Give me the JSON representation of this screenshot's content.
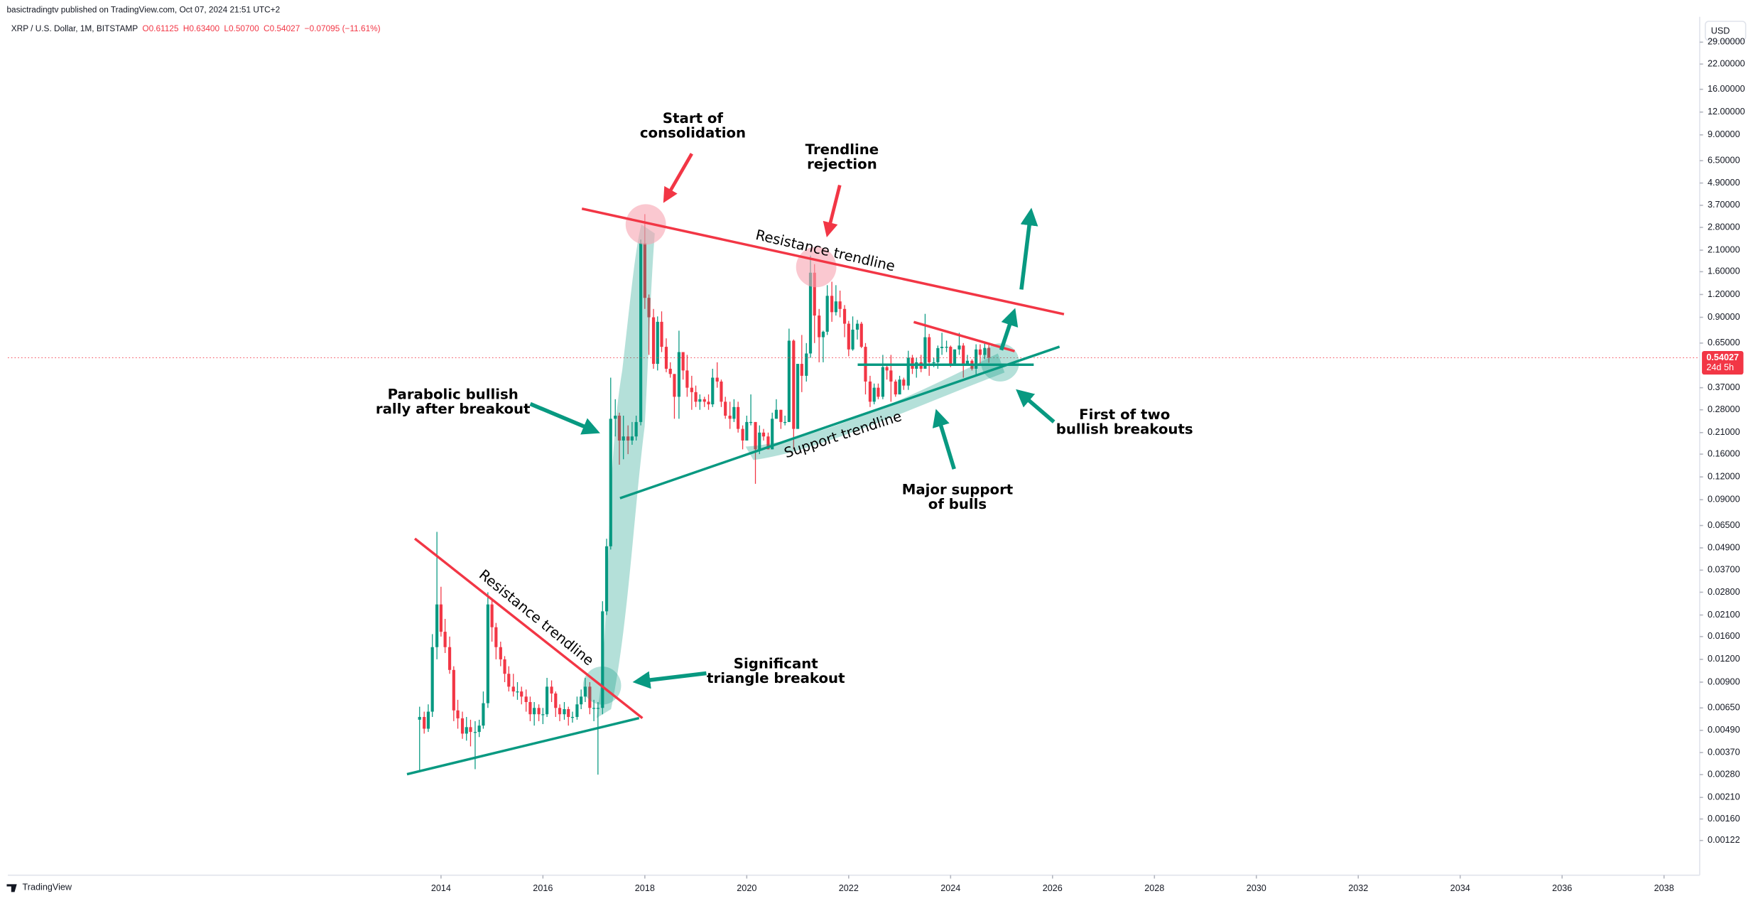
{
  "header": {
    "published": "basictradingtv published on TradingView.com, Oct 07, 2024 21:51 UTC+2",
    "symbol": "XRP / U.S. Dollar, 1M, BITSTAMP",
    "ohlc": [
      "O0.61125",
      "H0.63400",
      "L0.50700",
      "C0.54027",
      "−0.07095 (−11.61%)"
    ]
  },
  "currency": "USD",
  "price_label": "0.54027",
  "countdown": "24d 5h",
  "brand": "TradingView",
  "annotations": [
    [
      "Start of",
      "consolidation"
    ],
    [
      "Trendline",
      "rejection"
    ],
    [
      "Parabolic bullish",
      "rally after breakout"
    ],
    [
      "First of two",
      "bullish breakouts"
    ],
    [
      "Major support",
      "of bulls"
    ],
    [
      "Significant",
      "triangle breakout"
    ]
  ],
  "trendline_labels": [
    "Resistance trendline",
    "Support trendline",
    "Resistance trendline"
  ],
  "chart_data": {
    "type": "candlestick",
    "log_scale": true,
    "up_color": "#089981",
    "down_color": "#f23645",
    "xlim": [
      2005.5,
      2038.7
    ],
    "xticks": [
      2014,
      2016,
      2018,
      2020,
      2022,
      2024,
      2026,
      2028,
      2030,
      2032,
      2034,
      2036,
      2038
    ],
    "ylim": [
      0.000787,
      37.2
    ],
    "yticks": [
      {
        "value": 0.00122,
        "label": "0.00122"
      },
      {
        "value": 0.0016,
        "label": "0.00160"
      },
      {
        "value": 0.0021,
        "label": "0.00210"
      },
      {
        "value": 0.0028,
        "label": "0.00280"
      },
      {
        "value": 0.0037,
        "label": "0.00370"
      },
      {
        "value": 0.0049,
        "label": "0.00490"
      },
      {
        "value": 0.0065,
        "label": "0.00650"
      },
      {
        "value": 0.009,
        "label": "0.00900"
      },
      {
        "value": 0.012,
        "label": "0.01200"
      },
      {
        "value": 0.016,
        "label": "0.01600"
      },
      {
        "value": 0.021,
        "label": "0.02100"
      },
      {
        "value": 0.028,
        "label": "0.02800"
      },
      {
        "value": 0.037,
        "label": "0.03700"
      },
      {
        "value": 0.049,
        "label": "0.04900"
      },
      {
        "value": 0.065,
        "label": "0.06500"
      },
      {
        "value": 0.09,
        "label": "0.09000"
      },
      {
        "value": 0.12,
        "label": "0.12000"
      },
      {
        "value": 0.16,
        "label": "0.16000"
      },
      {
        "value": 0.21,
        "label": "0.21000"
      },
      {
        "value": 0.28,
        "label": "0.28000"
      },
      {
        "value": 0.37,
        "label": "0.37000"
      },
      {
        "value": 0.65,
        "label": "0.65000"
      },
      {
        "value": 0.9,
        "label": "0.90000"
      },
      {
        "value": 1.2,
        "label": "1.20000"
      },
      {
        "value": 1.6,
        "label": "1.60000"
      },
      {
        "value": 2.1,
        "label": "2.10000"
      },
      {
        "value": 2.8,
        "label": "2.80000"
      },
      {
        "value": 3.7,
        "label": "3.70000"
      },
      {
        "value": 4.9,
        "label": "4.90000"
      },
      {
        "value": 6.5,
        "label": "6.50000"
      },
      {
        "value": 9,
        "label": "9.00000"
      },
      {
        "value": 12,
        "label": "12.00000"
      },
      {
        "value": 16,
        "label": "16.00000"
      },
      {
        "value": 22,
        "label": "22.00000"
      },
      {
        "value": 29,
        "label": "29.00000"
      }
    ],
    "x": [
      2013.58,
      2013.67,
      2013.75,
      2013.83,
      2013.92,
      2014.0,
      2014.08,
      2014.17,
      2014.25,
      2014.33,
      2014.42,
      2014.5,
      2014.58,
      2014.67,
      2014.75,
      2014.83,
      2014.92,
      2015.0,
      2015.08,
      2015.17,
      2015.25,
      2015.33,
      2015.42,
      2015.5,
      2015.58,
      2015.67,
      2015.75,
      2015.83,
      2015.92,
      2016.0,
      2016.08,
      2016.17,
      2016.25,
      2016.33,
      2016.42,
      2016.5,
      2016.58,
      2016.67,
      2016.75,
      2016.83,
      2016.92,
      2017.0,
      2017.08,
      2017.17,
      2017.25,
      2017.33,
      2017.42,
      2017.5,
      2017.58,
      2017.67,
      2017.75,
      2017.83,
      2017.92,
      2018.0,
      2018.08,
      2018.17,
      2018.25,
      2018.33,
      2018.42,
      2018.5,
      2018.58,
      2018.67,
      2018.75,
      2018.83,
      2018.92,
      2019.0,
      2019.08,
      2019.17,
      2019.25,
      2019.33,
      2019.42,
      2019.5,
      2019.58,
      2019.67,
      2019.75,
      2019.83,
      2019.92,
      2020.0,
      2020.08,
      2020.17,
      2020.25,
      2020.33,
      2020.42,
      2020.5,
      2020.58,
      2020.67,
      2020.75,
      2020.83,
      2020.92,
      2021.0,
      2021.08,
      2021.17,
      2021.25,
      2021.33,
      2021.42,
      2021.5,
      2021.58,
      2021.67,
      2021.75,
      2021.83,
      2021.92,
      2022.0,
      2022.08,
      2022.17,
      2022.25,
      2022.33,
      2022.42,
      2022.5,
      2022.58,
      2022.67,
      2022.75,
      2022.83,
      2022.92,
      2023.0,
      2023.08,
      2023.17,
      2023.25,
      2023.33,
      2023.42,
      2023.5,
      2023.58,
      2023.67,
      2023.75,
      2023.83,
      2023.92,
      2024.0,
      2024.08,
      2024.17,
      2024.25,
      2024.33,
      2024.42,
      2024.5,
      2024.58,
      2024.67,
      2024.75
    ],
    "open": [
      0.0056,
      0.0058,
      0.005,
      0.0062,
      0.014,
      0.024,
      0.017,
      0.014,
      0.0105,
      0.0063,
      0.0057,
      0.0047,
      0.0051,
      0.0048,
      0.0048,
      0.0052,
      0.0069,
      0.024,
      0.018,
      0.014,
      0.012,
      0.01,
      0.0085,
      0.008,
      0.008,
      0.0075,
      0.007,
      0.006,
      0.0065,
      0.006,
      0.006,
      0.0085,
      0.0078,
      0.0065,
      0.006,
      0.0064,
      0.0058,
      0.0058,
      0.0068,
      0.0075,
      0.0085,
      0.0065,
      0.0065,
      0.0065,
      0.022,
      0.05,
      0.25,
      0.26,
      0.19,
      0.2,
      0.19,
      0.2,
      0.24,
      2.29,
      1.15,
      0.9,
      0.5,
      0.85,
      0.62,
      0.47,
      0.44,
      0.33,
      0.58,
      0.46,
      0.37,
      0.35,
      0.31,
      0.32,
      0.31,
      0.3,
      0.42,
      0.4,
      0.31,
      0.26,
      0.25,
      0.29,
      0.22,
      0.19,
      0.24,
      0.24,
      0.17,
      0.21,
      0.2,
      0.17,
      0.25,
      0.28,
      0.24,
      0.24,
      0.67,
      0.22,
      0.5,
      0.43,
      0.57,
      1.58,
      0.92,
      0.7,
      0.75,
      1.18,
      0.96,
      1.1,
      1.0,
      0.83,
      0.6,
      0.77,
      0.83,
      0.62,
      0.4,
      0.31,
      0.37,
      0.33,
      0.48,
      0.46,
      0.4,
      0.34,
      0.41,
      0.38,
      0.54,
      0.47,
      0.51,
      0.47,
      0.7,
      0.51,
      0.51,
      0.61,
      0.62,
      0.62,
      0.5,
      0.6,
      0.63,
      0.5,
      0.52,
      0.47,
      0.6,
      0.56,
      0.61125
    ],
    "high": [
      0.0066,
      0.0062,
      0.0068,
      0.0165,
      0.06,
      0.03,
      0.02,
      0.016,
      0.011,
      0.0072,
      0.0062,
      0.0058,
      0.0056,
      0.0055,
      0.0056,
      0.008,
      0.028,
      0.026,
      0.019,
      0.015,
      0.0125,
      0.011,
      0.01,
      0.009,
      0.0085,
      0.0082,
      0.0075,
      0.007,
      0.0068,
      0.0065,
      0.0095,
      0.0092,
      0.008,
      0.0068,
      0.007,
      0.0066,
      0.0062,
      0.0075,
      0.0082,
      0.0095,
      0.009,
      0.0072,
      0.007,
      0.025,
      0.055,
      0.42,
      0.32,
      0.27,
      0.26,
      0.23,
      0.24,
      0.26,
      2.4,
      3.31,
      1.2,
      1.0,
      0.91,
      0.97,
      0.69,
      0.51,
      0.44,
      0.76,
      0.58,
      0.56,
      0.43,
      0.38,
      0.34,
      0.33,
      0.34,
      0.47,
      0.51,
      0.41,
      0.33,
      0.31,
      0.32,
      0.31,
      0.23,
      0.26,
      0.34,
      0.24,
      0.23,
      0.22,
      0.21,
      0.27,
      0.32,
      0.28,
      0.26,
      0.78,
      0.68,
      0.5,
      0.72,
      0.65,
      1.96,
      1.76,
      1.0,
      0.76,
      1.35,
      1.41,
      1.35,
      1.26,
      1.05,
      0.86,
      0.91,
      0.87,
      0.85,
      0.65,
      0.43,
      0.39,
      0.39,
      0.56,
      0.5,
      0.56,
      0.41,
      0.43,
      0.42,
      0.59,
      0.56,
      0.54,
      0.56,
      0.94,
      0.73,
      0.54,
      0.63,
      0.74,
      0.67,
      0.63,
      0.6,
      0.74,
      0.65,
      0.56,
      0.53,
      0.64,
      0.64,
      0.66,
      0.634
    ],
    "low": [
      0.0029,
      0.0047,
      0.0048,
      0.0058,
      0.012,
      0.016,
      0.013,
      0.01,
      0.0055,
      0.005,
      0.0044,
      0.0043,
      0.004,
      0.003,
      0.0045,
      0.005,
      0.0065,
      0.015,
      0.012,
      0.011,
      0.009,
      0.008,
      0.0075,
      0.0072,
      0.0068,
      0.0062,
      0.0055,
      0.0052,
      0.0055,
      0.0053,
      0.0058,
      0.007,
      0.0058,
      0.0055,
      0.0056,
      0.0052,
      0.0054,
      0.0056,
      0.0064,
      0.007,
      0.006,
      0.0055,
      0.0028,
      0.006,
      0.021,
      0.048,
      0.2,
      0.14,
      0.15,
      0.16,
      0.18,
      0.19,
      0.23,
      1.0,
      0.56,
      0.47,
      0.46,
      0.58,
      0.45,
      0.42,
      0.25,
      0.25,
      0.41,
      0.33,
      0.28,
      0.29,
      0.28,
      0.29,
      0.28,
      0.29,
      0.37,
      0.29,
      0.25,
      0.22,
      0.24,
      0.21,
      0.17,
      0.19,
      0.23,
      0.11,
      0.16,
      0.19,
      0.17,
      0.17,
      0.25,
      0.22,
      0.23,
      0.24,
      0.17,
      0.22,
      0.35,
      0.4,
      0.54,
      0.65,
      0.51,
      0.51,
      0.72,
      0.85,
      0.92,
      0.9,
      0.7,
      0.55,
      0.59,
      0.68,
      0.61,
      0.34,
      0.29,
      0.3,
      0.32,
      0.32,
      0.41,
      0.31,
      0.33,
      0.34,
      0.36,
      0.36,
      0.44,
      0.42,
      0.45,
      0.47,
      0.43,
      0.48,
      0.47,
      0.56,
      0.58,
      0.48,
      0.49,
      0.56,
      0.42,
      0.49,
      0.46,
      0.43,
      0.49,
      0.53,
      0.507
    ],
    "close": [
      0.0058,
      0.005,
      0.0062,
      0.014,
      0.024,
      0.017,
      0.014,
      0.0105,
      0.0063,
      0.0057,
      0.0047,
      0.0051,
      0.0048,
      0.0048,
      0.0052,
      0.0069,
      0.024,
      0.018,
      0.014,
      0.012,
      0.01,
      0.0085,
      0.008,
      0.008,
      0.0075,
      0.007,
      0.006,
      0.0065,
      0.006,
      0.006,
      0.0085,
      0.0078,
      0.0065,
      0.006,
      0.0064,
      0.0058,
      0.0058,
      0.0068,
      0.0075,
      0.0085,
      0.0065,
      0.0065,
      0.0065,
      0.022,
      0.05,
      0.25,
      0.26,
      0.19,
      0.2,
      0.19,
      0.2,
      0.24,
      2.29,
      1.15,
      0.9,
      0.5,
      0.85,
      0.62,
      0.47,
      0.44,
      0.33,
      0.58,
      0.46,
      0.37,
      0.35,
      0.31,
      0.32,
      0.31,
      0.3,
      0.42,
      0.4,
      0.31,
      0.26,
      0.25,
      0.29,
      0.22,
      0.19,
      0.24,
      0.24,
      0.17,
      0.21,
      0.2,
      0.17,
      0.25,
      0.28,
      0.24,
      0.24,
      0.67,
      0.22,
      0.5,
      0.43,
      0.57,
      1.58,
      0.92,
      0.7,
      0.75,
      1.18,
      0.96,
      1.1,
      1.0,
      0.83,
      0.6,
      0.77,
      0.83,
      0.62,
      0.4,
      0.31,
      0.37,
      0.33,
      0.48,
      0.46,
      0.4,
      0.34,
      0.41,
      0.38,
      0.54,
      0.47,
      0.51,
      0.47,
      0.7,
      0.51,
      0.51,
      0.61,
      0.62,
      0.62,
      0.5,
      0.6,
      0.63,
      0.5,
      0.52,
      0.47,
      0.6,
      0.56,
      0.61125,
      0.54027
    ]
  }
}
